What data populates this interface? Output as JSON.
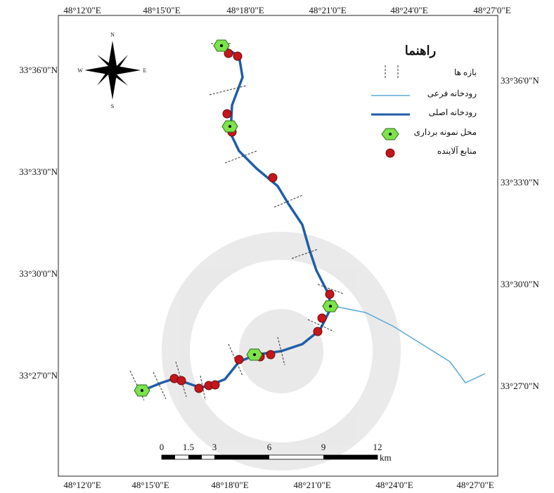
{
  "map": {
    "top_labels": [
      "48°12'0\"E",
      "48°15'0\"E",
      "48°18'0\"E",
      "48°21'0\"E",
      "48°24'0\"E",
      "48°27'0\"E"
    ],
    "bottom_labels": [
      "48°12'0\"E",
      "48°15'0\"E",
      "48°18'0\"E",
      "48°21'0\"E",
      "48°24'0\"E",
      "48°27'0\"E"
    ],
    "left_labels": [
      "33°36'0\"N",
      "33°33'0\"N",
      "33°30'0\"N",
      "33°27'0\"N"
    ],
    "right_labels": [
      "33°36'0\"N",
      "33°33'0\"N",
      "33°30'0\"N",
      "33°27'0\"N"
    ],
    "compass": {
      "n": "N",
      "s": "S",
      "w": "W",
      "e": "E"
    },
    "legend": {
      "title": "راهنما",
      "items": [
        "بازه ها",
        "رودخانه فرعی",
        "رودخانه اصلی",
        "محل نمونه برداری",
        "منابع آلاینده"
      ]
    },
    "scale": {
      "labels": [
        "0",
        "1.5",
        "3",
        "6",
        "9",
        "12"
      ],
      "unit": "km"
    }
  }
}
